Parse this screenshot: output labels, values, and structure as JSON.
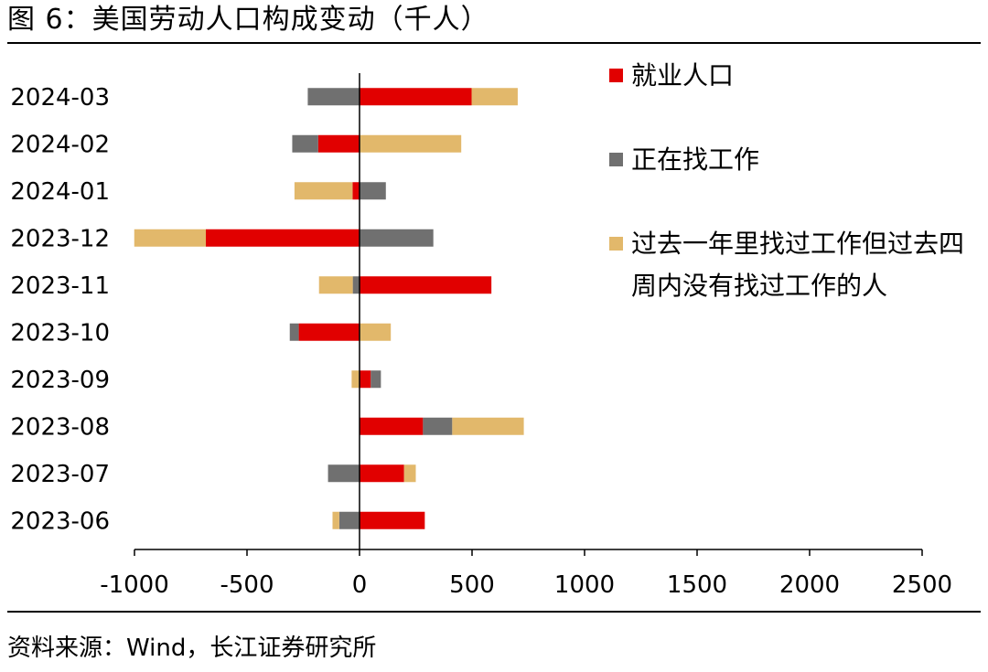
{
  "title": "图 6：美国劳动人口构成变动（千人）",
  "source": "资料来源：Wind，长江证券研究所",
  "colors": {
    "employed": "#e10000",
    "searching": "#707070",
    "marginal": "#e2b86b",
    "axis": "#000000"
  },
  "legend": [
    {
      "label": "就业人口",
      "color": "#e10000"
    },
    {
      "label": "正在找工作",
      "color": "#707070"
    },
    {
      "label": "过去一年里找过工作但过去四周内没有找过工作的人",
      "color": "#e2b86b"
    }
  ],
  "chart_data": {
    "type": "bar",
    "orientation": "horizontal",
    "stacked": "diverging",
    "categories": [
      "2024-03",
      "2024-02",
      "2024-01",
      "2023-12",
      "2023-11",
      "2023-10",
      "2023-09",
      "2023-08",
      "2023-07",
      "2023-06"
    ],
    "series": [
      {
        "name": "就业人口",
        "color": "#e10000",
        "values": [
          498,
          -184,
          -31,
          -683,
          586,
          -270,
          50,
          282,
          198,
          290
        ]
      },
      {
        "name": "正在找工作",
        "color": "#707070",
        "values": [
          -230,
          -115,
          117,
          328,
          -30,
          -40,
          45,
          130,
          -140,
          -90
        ]
      },
      {
        "name": "过去一年里找过工作但过去四周内没有找过工作的人",
        "color": "#e2b86b",
        "values": [
          205,
          452,
          -258,
          -318,
          -150,
          139,
          -35,
          318,
          52,
          -30
        ]
      }
    ],
    "xlim": [
      -1000,
      2500
    ],
    "xticks": [
      "-1000",
      "-500",
      "0",
      "500",
      "1000",
      "1500",
      "2000",
      "2500"
    ],
    "legend_position": "right",
    "grid": false
  }
}
